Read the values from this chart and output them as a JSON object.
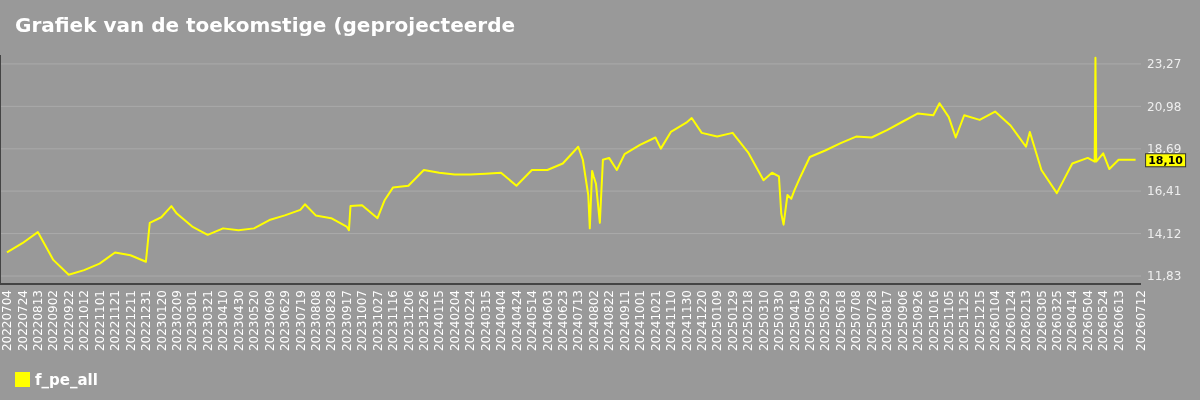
{
  "chart_data": {
    "type": "line",
    "title": "Grafiek van de toekomstige (geprojecteerde",
    "legend": "bottom",
    "grid": "y",
    "xlim": [
      "2022-06-25",
      "2026-07-12"
    ],
    "ylim": [
      11.4,
      23.75
    ],
    "yticks": [
      {
        "value": 11.83,
        "label": "11,83"
      },
      {
        "value": 14.12,
        "label": "14,12"
      },
      {
        "value": 16.41,
        "label": "16,41"
      },
      {
        "value": 18.69,
        "label": "18,69"
      },
      {
        "value": 20.98,
        "label": "20,98"
      },
      {
        "value": 23.27,
        "label": "23,27"
      }
    ],
    "xticks": [
      {
        "value": "2022-07-04",
        "label": "20220704"
      },
      {
        "value": "2022-07-24",
        "label": "20220724"
      },
      {
        "value": "2022-08-13",
        "label": "20220813"
      },
      {
        "value": "2022-09-02",
        "label": "20220902"
      },
      {
        "value": "2022-09-22",
        "label": "20220922"
      },
      {
        "value": "2022-10-12",
        "label": "20221012"
      },
      {
        "value": "2022-11-01",
        "label": "20221101"
      },
      {
        "value": "2022-11-21",
        "label": "20221121"
      },
      {
        "value": "2022-12-11",
        "label": "20221211"
      },
      {
        "value": "2022-12-31",
        "label": "20221231"
      },
      {
        "value": "2023-01-20",
        "label": "20230120"
      },
      {
        "value": "2023-02-09",
        "label": "20230209"
      },
      {
        "value": "2023-03-01",
        "label": "20230301"
      },
      {
        "value": "2023-03-21",
        "label": "20230321"
      },
      {
        "value": "2023-04-10",
        "label": "20230410"
      },
      {
        "value": "2023-04-30",
        "label": "20230430"
      },
      {
        "value": "2023-05-20",
        "label": "20230520"
      },
      {
        "value": "2023-06-09",
        "label": "20230609"
      },
      {
        "value": "2023-06-29",
        "label": "20230629"
      },
      {
        "value": "2023-07-19",
        "label": "20230719"
      },
      {
        "value": "2023-08-08",
        "label": "20230808"
      },
      {
        "value": "2023-08-28",
        "label": "20230828"
      },
      {
        "value": "2023-09-17",
        "label": "20230917"
      },
      {
        "value": "2023-10-07",
        "label": "20231007"
      },
      {
        "value": "2023-10-27",
        "label": "20231027"
      },
      {
        "value": "2023-11-16",
        "label": "20231116"
      },
      {
        "value": "2023-12-06",
        "label": "20231206"
      },
      {
        "value": "2023-12-26",
        "label": "20231226"
      },
      {
        "value": "2024-01-15",
        "label": "20240115"
      },
      {
        "value": "2024-02-04",
        "label": "20240204"
      },
      {
        "value": "2024-02-24",
        "label": "20240224"
      },
      {
        "value": "2024-03-15",
        "label": "20240315"
      },
      {
        "value": "2024-04-04",
        "label": "20240404"
      },
      {
        "value": "2024-04-24",
        "label": "20240424"
      },
      {
        "value": "2024-05-14",
        "label": "20240514"
      },
      {
        "value": "2024-06-03",
        "label": "20240603"
      },
      {
        "value": "2024-06-23",
        "label": "20240623"
      },
      {
        "value": "2024-07-13",
        "label": "20240713"
      },
      {
        "value": "2024-08-02",
        "label": "20240802"
      },
      {
        "value": "2024-08-22",
        "label": "20240822"
      },
      {
        "value": "2024-09-11",
        "label": "20240911"
      },
      {
        "value": "2024-10-01",
        "label": "20241001"
      },
      {
        "value": "2024-10-21",
        "label": "20241021"
      },
      {
        "value": "2024-11-10",
        "label": "20241110"
      },
      {
        "value": "2024-11-30",
        "label": "20241130"
      },
      {
        "value": "2024-12-20",
        "label": "20241220"
      },
      {
        "value": "2025-01-09",
        "label": "20250109"
      },
      {
        "value": "2025-01-29",
        "label": "20250129"
      },
      {
        "value": "2025-02-18",
        "label": "20250218"
      },
      {
        "value": "2025-03-10",
        "label": "20250310"
      },
      {
        "value": "2025-03-30",
        "label": "20250330"
      },
      {
        "value": "2025-04-19",
        "label": "20250419"
      },
      {
        "value": "2025-05-09",
        "label": "20250509"
      },
      {
        "value": "2025-05-29",
        "label": "20250529"
      },
      {
        "value": "2025-06-18",
        "label": "20250618"
      },
      {
        "value": "2025-07-08",
        "label": "20250708"
      },
      {
        "value": "2025-07-28",
        "label": "20250728"
      },
      {
        "value": "2025-08-17",
        "label": "20250817"
      },
      {
        "value": "2025-09-06",
        "label": "20250906"
      },
      {
        "value": "2025-09-26",
        "label": "20250926"
      },
      {
        "value": "2025-10-16",
        "label": "20251016"
      },
      {
        "value": "2025-11-05",
        "label": "20251105"
      },
      {
        "value": "2025-11-25",
        "label": "20251125"
      },
      {
        "value": "2025-12-15",
        "label": "20251215"
      },
      {
        "value": "2026-01-04",
        "label": "20260104"
      },
      {
        "value": "2026-01-24",
        "label": "20260124"
      },
      {
        "value": "2026-02-13",
        "label": "20260213"
      },
      {
        "value": "2026-03-05",
        "label": "20260305"
      },
      {
        "value": "2026-03-25",
        "label": "20260325"
      },
      {
        "value": "2026-04-14",
        "label": "20260414"
      },
      {
        "value": "2026-05-04",
        "label": "20260504"
      },
      {
        "value": "2026-05-24",
        "label": "20260524"
      },
      {
        "value": "2026-06-13",
        "label": "20260613"
      },
      {
        "value": "2026-07-12",
        "label": "20260712"
      }
    ],
    "annotations": [
      {
        "text": "18,10",
        "x": "2026-07-05",
        "y": 18.1
      }
    ],
    "series": [
      {
        "name": "f_pe_all",
        "color": "#ffff00",
        "x": [
          "2022-07-04",
          "2022-07-24",
          "2022-08-13",
          "2022-09-02",
          "2022-09-22",
          "2022-10-12",
          "2022-11-01",
          "2022-11-21",
          "2022-12-11",
          "2022-12-31",
          "2023-01-05",
          "2023-01-20",
          "2023-02-02",
          "2023-02-09",
          "2023-03-01",
          "2023-03-21",
          "2023-04-10",
          "2023-04-30",
          "2023-05-20",
          "2023-06-09",
          "2023-06-29",
          "2023-07-19",
          "2023-07-25",
          "2023-08-08",
          "2023-08-28",
          "2023-09-17",
          "2023-09-20",
          "2023-09-22",
          "2023-10-07",
          "2023-10-27",
          "2023-11-05",
          "2023-11-16",
          "2023-12-06",
          "2023-12-26",
          "2024-01-15",
          "2024-02-04",
          "2024-02-24",
          "2024-03-15",
          "2024-04-04",
          "2024-04-24",
          "2024-05-14",
          "2024-06-03",
          "2024-06-23",
          "2024-07-13",
          "2024-07-19",
          "2024-07-26",
          "2024-07-28",
          "2024-07-31",
          "2024-08-02",
          "2024-08-05",
          "2024-08-10",
          "2024-08-14",
          "2024-08-22",
          "2024-09-01",
          "2024-09-11",
          "2024-10-01",
          "2024-10-21",
          "2024-10-28",
          "2024-11-10",
          "2024-11-30",
          "2024-12-07",
          "2024-12-20",
          "2025-01-09",
          "2025-01-29",
          "2025-02-18",
          "2025-03-10",
          "2025-03-21",
          "2025-03-30",
          "2025-04-02",
          "2025-04-05",
          "2025-04-10",
          "2025-04-15",
          "2025-04-19",
          "2025-04-27",
          "2025-05-09",
          "2025-05-29",
          "2025-06-18",
          "2025-07-08",
          "2025-07-28",
          "2025-08-17",
          "2025-09-06",
          "2025-09-26",
          "2025-10-16",
          "2025-10-24",
          "2025-11-05",
          "2025-11-14",
          "2025-11-25",
          "2025-12-15",
          "2026-01-04",
          "2026-01-24",
          "2026-02-13",
          "2026-02-18",
          "2026-03-05",
          "2026-03-25",
          "2026-04-14",
          "2026-05-04",
          "2026-05-13",
          "2026-05-14",
          "2026-05-15",
          "2026-05-24",
          "2026-06-01",
          "2026-06-13",
          "2026-07-05"
        ],
        "values": [
          13.1,
          13.6,
          14.2,
          12.7,
          11.9,
          12.15,
          12.5,
          13.1,
          12.95,
          12.6,
          14.7,
          15.0,
          15.6,
          15.2,
          14.5,
          14.05,
          14.4,
          14.3,
          14.4,
          14.85,
          15.1,
          15.4,
          15.7,
          15.1,
          14.95,
          14.5,
          14.3,
          15.6,
          15.65,
          14.95,
          15.9,
          16.6,
          16.7,
          17.55,
          17.4,
          17.3,
          17.3,
          17.35,
          17.4,
          16.7,
          17.55,
          17.55,
          17.9,
          18.8,
          18.1,
          16.2,
          14.4,
          17.5,
          17.2,
          16.8,
          14.7,
          18.1,
          18.2,
          17.55,
          18.4,
          18.9,
          19.3,
          18.7,
          19.6,
          20.1,
          20.35,
          19.55,
          19.35,
          19.55,
          18.5,
          17.0,
          17.4,
          17.2,
          15.2,
          14.6,
          16.2,
          16.0,
          16.45,
          17.2,
          18.25,
          18.6,
          19.0,
          19.35,
          19.3,
          19.7,
          20.15,
          20.6,
          20.5,
          21.15,
          20.4,
          19.3,
          20.5,
          20.25,
          20.7,
          19.95,
          18.8,
          19.6,
          17.55,
          16.3,
          17.9,
          18.2,
          18.0,
          23.6,
          18.0,
          18.45,
          17.6,
          18.1,
          18.1
        ]
      }
    ]
  }
}
